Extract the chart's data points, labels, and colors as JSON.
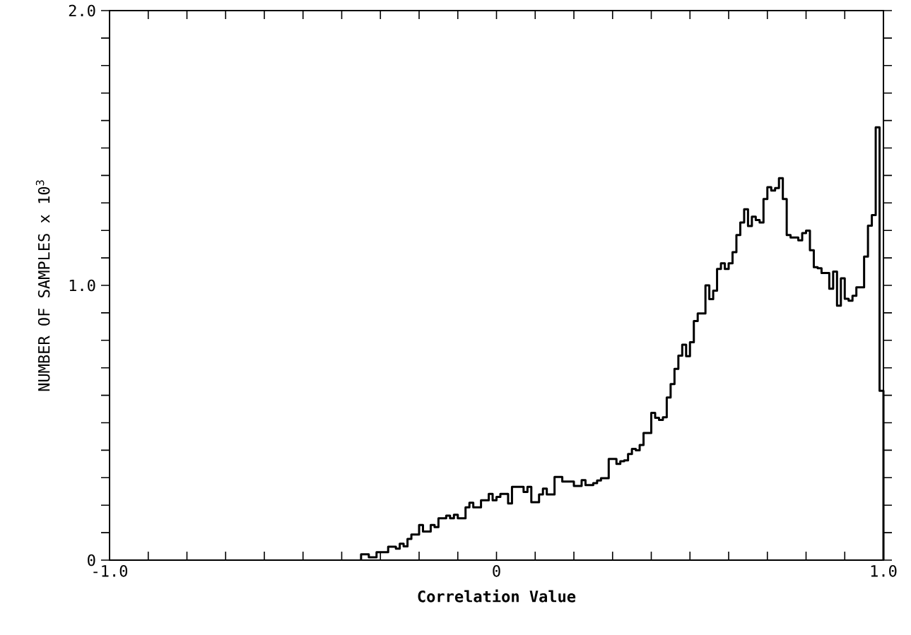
{
  "chart_data": {
    "type": "histogram",
    "xlabel": "Correlation Value",
    "ylabel": "NUMBER OF SAMPLES x 10$^{3}$",
    "color": "#000000",
    "xlim": [
      -1,
      1
    ],
    "ylim": [
      0,
      2
    ],
    "xticks": [
      {
        "value": -1,
        "label": "-1.0"
      },
      {
        "value": -0.9,
        "label": null
      },
      {
        "value": -0.8,
        "label": null
      },
      {
        "value": -0.7,
        "label": null
      },
      {
        "value": -0.6,
        "label": null
      },
      {
        "value": -0.5,
        "label": null
      },
      {
        "value": -0.4,
        "label": null
      },
      {
        "value": -0.3,
        "label": null
      },
      {
        "value": -0.2,
        "label": null
      },
      {
        "value": -0.1,
        "label": null
      },
      0,
      {
        "value": 0.1,
        "label": null
      },
      {
        "value": 0.2,
        "label": null
      },
      {
        "value": 0.3,
        "label": null
      },
      {
        "value": 0.4,
        "label": null
      },
      {
        "value": 0.5,
        "label": null
      },
      {
        "value": 0.6,
        "label": null
      },
      {
        "value": 0.7,
        "label": null
      },
      {
        "value": 0.8,
        "label": null
      },
      {
        "value": 0.9,
        "label": null
      },
      {
        "value": 1,
        "label": "1.0"
      }
    ],
    "yticks": [
      0,
      {
        "value": 0.1,
        "label": null
      },
      {
        "value": 0.2,
        "label": null
      },
      {
        "value": 0.3,
        "label": null
      },
      {
        "value": 0.4,
        "label": null
      },
      {
        "value": 0.5,
        "label": null
      },
      {
        "value": 0.6,
        "label": null
      },
      {
        "value": 0.7,
        "label": null
      },
      {
        "value": 0.8,
        "label": null
      },
      {
        "value": 0.9,
        "label": null
      },
      {
        "value": 1,
        "label": "1.0"
      },
      {
        "value": 1.1,
        "label": null
      },
      {
        "value": 1.2,
        "label": null
      },
      {
        "value": 1.3,
        "label": null
      },
      {
        "value": 1.4,
        "label": null
      },
      {
        "value": 1.5,
        "label": null
      },
      {
        "value": 1.6,
        "label": null
      },
      {
        "value": 1.7,
        "label": null
      },
      {
        "value": 1.8,
        "label": null
      },
      {
        "value": 1.9,
        "label": null
      },
      {
        "value": 2,
        "label": "2.0"
      }
    ],
    "bins": [
      -0.35,
      -0.34,
      -0.33,
      -0.32,
      -0.31,
      -0.3,
      -0.29,
      -0.28,
      -0.27,
      -0.26,
      -0.25,
      -0.24,
      -0.23,
      -0.22,
      -0.21,
      -0.2,
      -0.19,
      -0.18,
      -0.17,
      -0.16,
      -0.15,
      -0.14,
      -0.13,
      -0.12,
      -0.11,
      -0.1,
      -0.09,
      -0.08,
      -0.07,
      -0.06,
      -0.05,
      -0.04,
      -0.03,
      -0.02,
      -0.01,
      0,
      0.01,
      0.02,
      0.03,
      0.04,
      0.05,
      0.06,
      0.07,
      0.08,
      0.09,
      0.1,
      0.11,
      0.12,
      0.13,
      0.14,
      0.15,
      0.16,
      0.17,
      0.18,
      0.19,
      0.2,
      0.21,
      0.22,
      0.23,
      0.24,
      0.25,
      0.26,
      0.27,
      0.28,
      0.29,
      0.3,
      0.31,
      0.32,
      0.33,
      0.34,
      0.35,
      0.36,
      0.37,
      0.38,
      0.39,
      0.4,
      0.41,
      0.42,
      0.43,
      0.44,
      0.45,
      0.46,
      0.47,
      0.48,
      0.49,
      0.5,
      0.51,
      0.52,
      0.53,
      0.54,
      0.55,
      0.56,
      0.57,
      0.58,
      0.59,
      0.6,
      0.61,
      0.62,
      0.63,
      0.64,
      0.65,
      0.66,
      0.67,
      0.68,
      0.69,
      0.7,
      0.71,
      0.72,
      0.73,
      0.74,
      0.75,
      0.76,
      0.77,
      0.78,
      0.79,
      0.8,
      0.81,
      0.82,
      0.83,
      0.84,
      0.85,
      0.86,
      0.87,
      0.88,
      0.89,
      0.9,
      0.91,
      0.92,
      0.93,
      0.94,
      0.95,
      0.96,
      0.97,
      0.98,
      0.99,
      1.0
    ],
    "values": [
      0.021,
      0.021,
      0.01,
      0.01,
      0.029,
      0.029,
      0.029,
      0.049,
      0.049,
      0.042,
      0.06,
      0.05,
      0.077,
      0.093,
      0.093,
      0.128,
      0.104,
      0.104,
      0.128,
      0.12,
      0.152,
      0.152,
      0.162,
      0.152,
      0.165,
      0.152,
      0.152,
      0.192,
      0.209,
      0.192,
      0.192,
      0.218,
      0.218,
      0.241,
      0.218,
      0.23,
      0.241,
      0.241,
      0.206,
      0.267,
      0.267,
      0.267,
      0.248,
      0.267,
      0.211,
      0.211,
      0.239,
      0.26,
      0.239,
      0.239,
      0.303,
      0.303,
      0.286,
      0.286,
      0.286,
      0.27,
      0.27,
      0.291,
      0.273,
      0.273,
      0.28,
      0.29,
      0.298,
      0.298,
      0.368,
      0.368,
      0.35,
      0.36,
      0.363,
      0.386,
      0.405,
      0.4,
      0.419,
      0.463,
      0.463,
      0.536,
      0.518,
      0.51,
      0.52,
      0.592,
      0.641,
      0.696,
      0.744,
      0.784,
      0.742,
      0.793,
      0.87,
      0.898,
      0.898,
      1.0,
      0.95,
      0.981,
      1.06,
      1.08,
      1.06,
      1.08,
      1.121,
      1.183,
      1.229,
      1.277,
      1.216,
      1.25,
      1.238,
      1.229,
      1.314,
      1.357,
      1.345,
      1.354,
      1.39,
      1.314,
      1.183,
      1.174,
      1.174,
      1.164,
      1.19,
      1.199,
      1.128,
      1.066,
      1.062,
      1.045,
      1.045,
      0.988,
      1.05,
      0.926,
      1.026,
      0.951,
      0.944,
      0.962,
      0.993,
      0.993,
      1.105,
      1.217,
      1.256,
      1.575,
      0.616
    ]
  }
}
